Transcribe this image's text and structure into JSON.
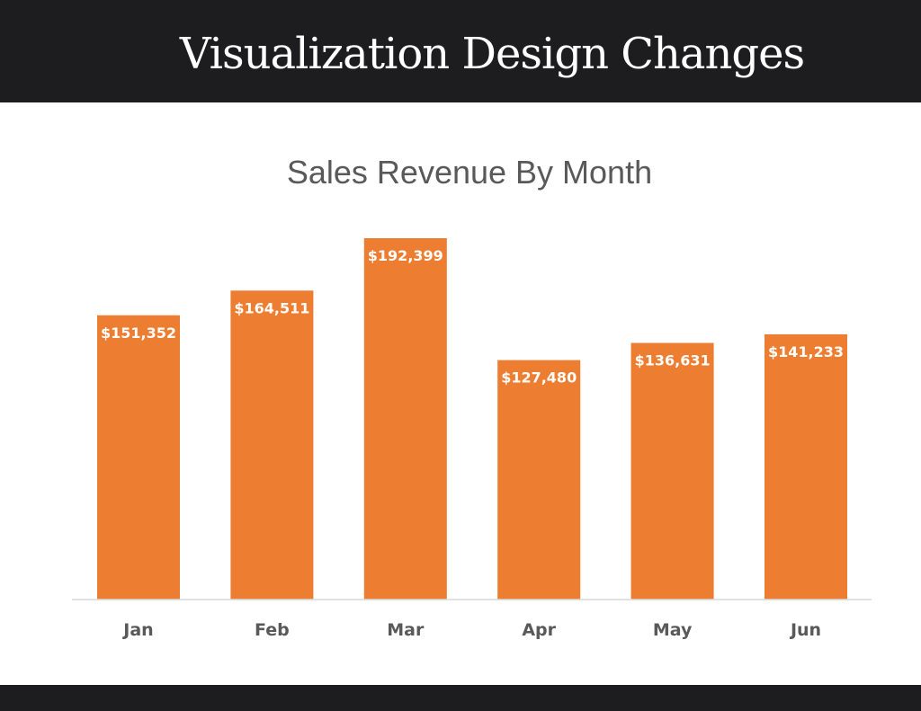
{
  "header": {
    "title": "Visualization Design Changes"
  },
  "colors": {
    "banner": "#1d1d1f",
    "bar": "#ed7d31",
    "axis": "#d9d9d9",
    "text": "#595959"
  },
  "chart_data": {
    "type": "bar",
    "title": "Sales Revenue By Month",
    "xlabel": "",
    "ylabel": "",
    "categories": [
      "Jan",
      "Feb",
      "Mar",
      "Apr",
      "May",
      "Jun"
    ],
    "values": [
      151352,
      164511,
      192399,
      127480,
      136631,
      141233
    ],
    "labels": [
      "$151,352",
      "$164,511",
      "$192,399",
      "$127,480",
      "$136,631",
      "$141,233"
    ],
    "ylim": [
      0,
      192399
    ],
    "grid": false,
    "legend": "none"
  }
}
